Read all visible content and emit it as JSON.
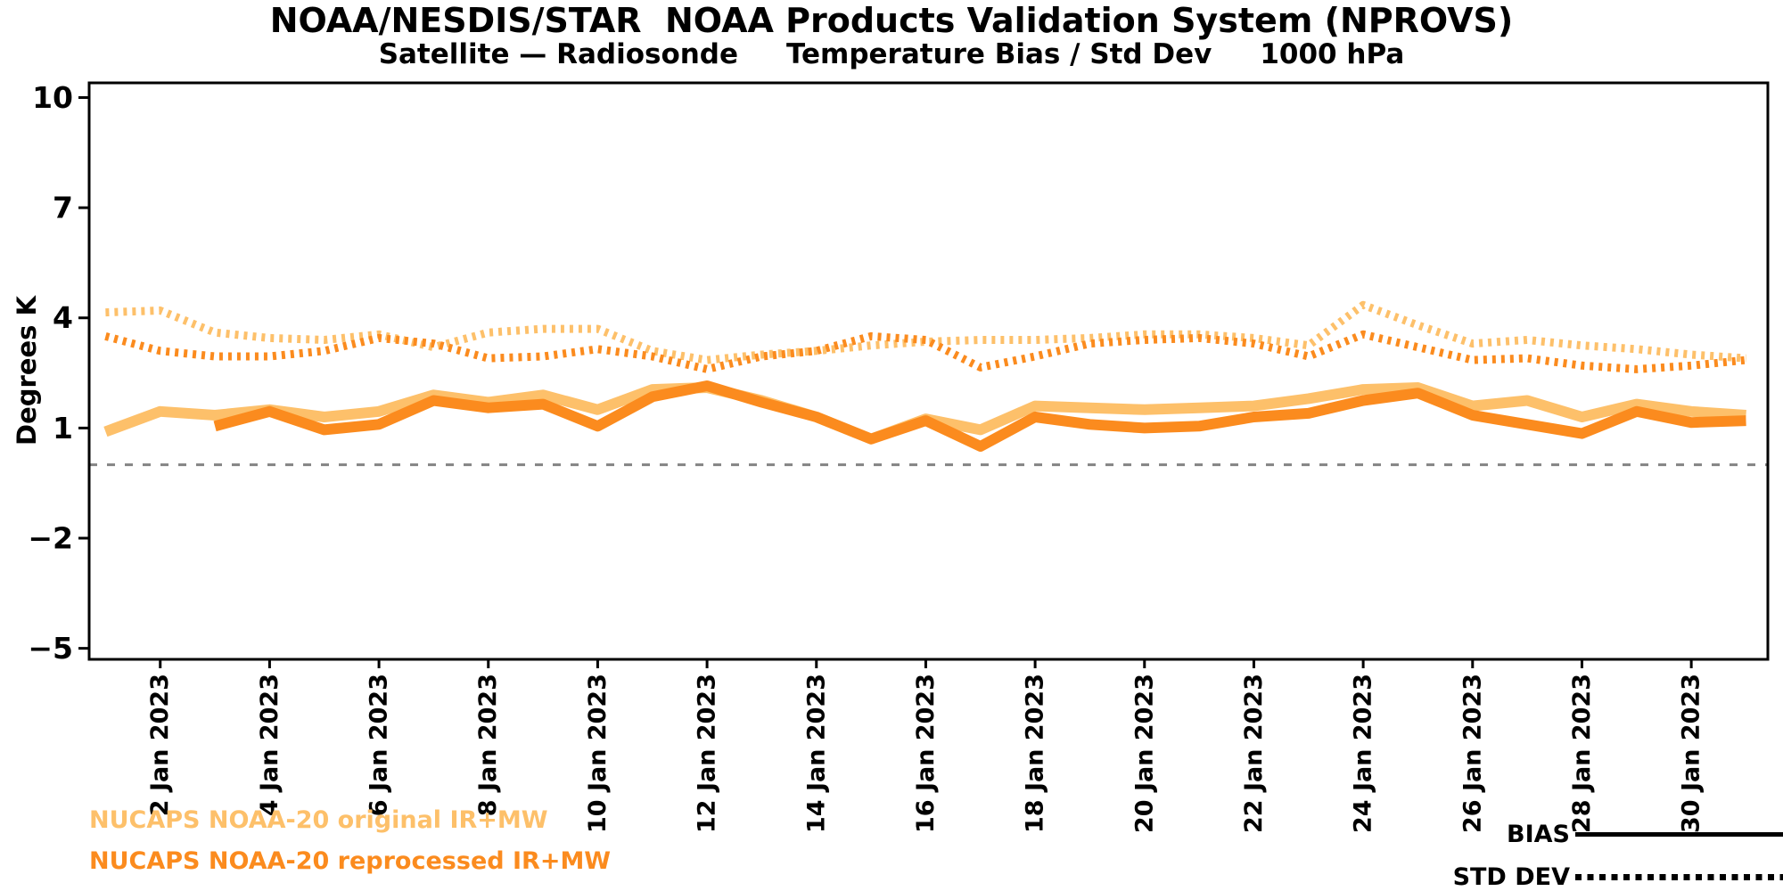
{
  "title": "NOAA/NESDIS/STAR  NOAA Products Validation System (NPROVS)",
  "subtitle": "Satellite — Radiosonde     Temperature Bias / Std Dev     1000 hPa",
  "legend": {
    "series": [
      {
        "label": "NUCAPS NOAA-20 original IR+MW",
        "color": "#FDC06A"
      },
      {
        "label": "NUCAPS NOAA-20 reprocessed IR+MW",
        "color": "#FB8B1E"
      }
    ],
    "styles": [
      {
        "label": "BIAS",
        "style": "solid"
      },
      {
        "label": "STD DEV",
        "style": "dotted"
      }
    ]
  },
  "chart_data": {
    "type": "line",
    "title": "NOAA/NESDIS/STAR NOAA Products Validation System (NPROVS)",
    "subtitle": "Satellite - Radiosonde / Temperature Bias / Std Dev / 1000 hPa",
    "xlabel": "",
    "ylabel": "Degrees K",
    "xlim": [
      0.7,
      31.4
    ],
    "ylim": [
      -5.3,
      10.4
    ],
    "grid": false,
    "zero_line": 0,
    "zero_line_color": "#848484",
    "axis_color": "#000000",
    "yticks": {
      "values": [
        10,
        7,
        4,
        1,
        -2,
        -5
      ],
      "labels": [
        "10",
        "7",
        "4",
        "1",
        "−2",
        "−5"
      ]
    },
    "xticks": {
      "days": [
        2,
        4,
        6,
        8,
        10,
        12,
        14,
        16,
        18,
        20,
        22,
        24,
        26,
        28,
        30
      ],
      "labels": [
        "2 Jan 2023",
        "4 Jan 2023",
        "6 Jan 2023",
        "8 Jan 2023",
        "10 Jan 2023",
        "12 Jan 2023",
        "14 Jan 2023",
        "16 Jan 2023",
        "18 Jan 2023",
        "20 Jan 2023",
        "22 Jan 2023",
        "24 Jan 2023",
        "26 Jan 2023",
        "28 Jan 2023",
        "30 Jan 2023"
      ]
    },
    "x_days": [
      1,
      2,
      3,
      4,
      5,
      6,
      7,
      8,
      9,
      10,
      11,
      12,
      13,
      14,
      15,
      16,
      17,
      18,
      19,
      20,
      21,
      22,
      23,
      24,
      25,
      26,
      27,
      28,
      29,
      30,
      31
    ],
    "series": [
      {
        "name": "NUCAPS NOAA-20 original IR+MW",
        "metric": "STD DEV",
        "color": "#FDC06A",
        "line_style": "dotted",
        "values": [
          4.15,
          4.2,
          3.6,
          3.45,
          3.4,
          3.55,
          3.2,
          3.6,
          3.7,
          3.7,
          3.1,
          2.85,
          3.0,
          3.1,
          3.25,
          3.35,
          3.4,
          3.4,
          3.45,
          3.55,
          3.55,
          3.45,
          3.25,
          4.35,
          3.8,
          3.3,
          3.4,
          3.25,
          3.15,
          3.0,
          2.9
        ]
      },
      {
        "name": "NUCAPS NOAA-20 reprocessed IR+MW",
        "metric": "STD DEV",
        "color": "#FB8B1E",
        "line_style": "dotted",
        "values": [
          3.5,
          3.1,
          2.95,
          2.95,
          3.1,
          3.45,
          3.3,
          2.9,
          2.95,
          3.15,
          2.95,
          2.6,
          2.95,
          3.1,
          3.5,
          3.4,
          2.65,
          2.95,
          3.3,
          3.4,
          3.45,
          3.3,
          2.95,
          3.55,
          3.2,
          2.85,
          2.9,
          2.7,
          2.6,
          2.7,
          2.85
        ]
      },
      {
        "name": "NUCAPS NOAA-20 original IR+MW",
        "metric": "BIAS",
        "color": "#FDC06A",
        "line_style": "solid",
        "values": [
          0.9,
          1.45,
          1.35,
          1.5,
          1.3,
          1.45,
          1.9,
          1.7,
          1.9,
          1.5,
          2.05,
          2.1,
          1.75,
          1.3,
          0.7,
          1.25,
          0.95,
          1.6,
          1.55,
          1.5,
          1.55,
          1.6,
          1.8,
          2.05,
          2.1,
          1.6,
          1.75,
          1.3,
          1.65,
          1.45,
          1.35
        ]
      },
      {
        "name": "NUCAPS NOAA-20 reprocessed IR+MW",
        "metric": "BIAS",
        "color": "#FB8B1E",
        "line_style": "solid",
        "values": [
          null,
          null,
          1.05,
          1.45,
          0.95,
          1.1,
          1.75,
          1.55,
          1.65,
          1.05,
          1.85,
          2.15,
          1.7,
          1.3,
          0.7,
          1.2,
          0.5,
          1.3,
          1.1,
          1.0,
          1.05,
          1.3,
          1.4,
          1.75,
          1.95,
          1.35,
          1.1,
          0.85,
          1.45,
          1.15,
          1.2
        ]
      }
    ]
  }
}
